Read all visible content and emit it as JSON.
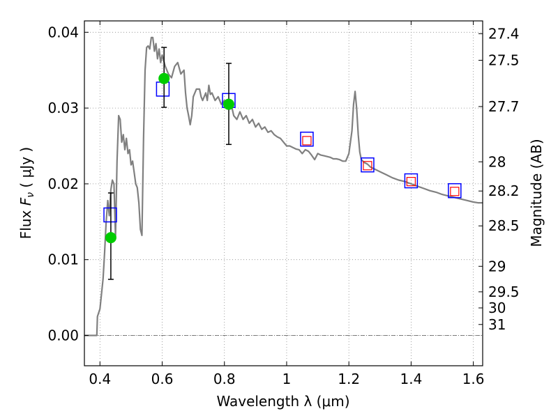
{
  "chart_data": {
    "type": "line",
    "xlabel": "Wavelength  λ (μm)",
    "ylabel": "Flux  F_ν  ( μJy )",
    "ylabel_right": "Magnitude (AB)",
    "xlim": [
      0.35,
      1.63
    ],
    "ylim": [
      -0.004,
      0.0415
    ],
    "grid": true,
    "x_ticks": [
      {
        "value": 0.4,
        "label": "0.4"
      },
      {
        "value": 0.6,
        "label": "0.6"
      },
      {
        "value": 0.8,
        "label": "0.8"
      },
      {
        "value": 1.0,
        "label": "1"
      },
      {
        "value": 1.2,
        "label": "1.2"
      },
      {
        "value": 1.4,
        "label": "1.4"
      },
      {
        "value": 1.6,
        "label": "1.6"
      }
    ],
    "y_ticks": [
      {
        "value": 0.0,
        "label": "0.00"
      },
      {
        "value": 0.01,
        "label": "0.01"
      },
      {
        "value": 0.02,
        "label": "0.02"
      },
      {
        "value": 0.03,
        "label": "0.03"
      },
      {
        "value": 0.04,
        "label": "0.04"
      }
    ],
    "right_ticks": [
      {
        "value": 27.4,
        "label": "27.4"
      },
      {
        "value": 27.5,
        "label": "27.5"
      },
      {
        "value": 27.7,
        "label": "27.7"
      },
      {
        "value": 28.0,
        "label": "28"
      },
      {
        "value": 28.2,
        "label": "28.2"
      },
      {
        "value": 28.5,
        "label": "28.5"
      },
      {
        "value": 29.0,
        "label": "29"
      },
      {
        "value": 29.5,
        "label": "29.5"
      },
      {
        "value": 30.0,
        "label": "30"
      },
      {
        "value": 31.0,
        "label": "31"
      }
    ],
    "series": [
      {
        "kind": "sed-model-line",
        "color": "#808080",
        "points": [
          [
            0.35,
            0.0
          ],
          [
            0.39,
            0.0
          ],
          [
            0.392,
            0.0025
          ],
          [
            0.4,
            0.0035
          ],
          [
            0.41,
            0.0075
          ],
          [
            0.415,
            0.011
          ],
          [
            0.42,
            0.015
          ],
          [
            0.425,
            0.0178
          ],
          [
            0.43,
            0.0158
          ],
          [
            0.435,
            0.0192
          ],
          [
            0.44,
            0.0205
          ],
          [
            0.445,
            0.02
          ],
          [
            0.45,
            0.013
          ],
          [
            0.455,
            0.023
          ],
          [
            0.46,
            0.029
          ],
          [
            0.465,
            0.0285
          ],
          [
            0.47,
            0.0255
          ],
          [
            0.475,
            0.0265
          ],
          [
            0.48,
            0.0245
          ],
          [
            0.485,
            0.026
          ],
          [
            0.49,
            0.024
          ],
          [
            0.495,
            0.0245
          ],
          [
            0.5,
            0.0225
          ],
          [
            0.505,
            0.023
          ],
          [
            0.51,
            0.0215
          ],
          [
            0.515,
            0.02
          ],
          [
            0.52,
            0.0195
          ],
          [
            0.525,
            0.0175
          ],
          [
            0.53,
            0.014
          ],
          [
            0.535,
            0.0132
          ],
          [
            0.54,
            0.026
          ],
          [
            0.545,
            0.035
          ],
          [
            0.55,
            0.038
          ],
          [
            0.555,
            0.0382
          ],
          [
            0.56,
            0.0378
          ],
          [
            0.565,
            0.0393
          ],
          [
            0.57,
            0.0393
          ],
          [
            0.575,
            0.0375
          ],
          [
            0.58,
            0.0385
          ],
          [
            0.585,
            0.0365
          ],
          [
            0.59,
            0.0378
          ],
          [
            0.595,
            0.036
          ],
          [
            0.6,
            0.037
          ],
          [
            0.61,
            0.0355
          ],
          [
            0.62,
            0.0345
          ],
          [
            0.63,
            0.034
          ],
          [
            0.64,
            0.0355
          ],
          [
            0.65,
            0.036
          ],
          [
            0.66,
            0.0345
          ],
          [
            0.67,
            0.035
          ],
          [
            0.675,
            0.032
          ],
          [
            0.68,
            0.03
          ],
          [
            0.685,
            0.029
          ],
          [
            0.69,
            0.0278
          ],
          [
            0.695,
            0.029
          ],
          [
            0.7,
            0.0315
          ],
          [
            0.71,
            0.0325
          ],
          [
            0.72,
            0.0325
          ],
          [
            0.725,
            0.0315
          ],
          [
            0.73,
            0.031
          ],
          [
            0.74,
            0.032
          ],
          [
            0.745,
            0.031
          ],
          [
            0.75,
            0.033
          ],
          [
            0.755,
            0.0318
          ],
          [
            0.76,
            0.032
          ],
          [
            0.77,
            0.031
          ],
          [
            0.78,
            0.0315
          ],
          [
            0.79,
            0.0305
          ],
          [
            0.8,
            0.031
          ],
          [
            0.81,
            0.0305
          ],
          [
            0.82,
            0.0308
          ],
          [
            0.83,
            0.029
          ],
          [
            0.84,
            0.0285
          ],
          [
            0.85,
            0.0295
          ],
          [
            0.86,
            0.0285
          ],
          [
            0.87,
            0.029
          ],
          [
            0.88,
            0.028
          ],
          [
            0.89,
            0.0285
          ],
          [
            0.9,
            0.0275
          ],
          [
            0.91,
            0.028
          ],
          [
            0.92,
            0.0272
          ],
          [
            0.93,
            0.0275
          ],
          [
            0.94,
            0.0268
          ],
          [
            0.95,
            0.027
          ],
          [
            0.96,
            0.0265
          ],
          [
            0.97,
            0.0262
          ],
          [
            0.98,
            0.026
          ],
          [
            0.99,
            0.0255
          ],
          [
            1.0,
            0.025
          ],
          [
            1.01,
            0.025
          ],
          [
            1.02,
            0.0248
          ],
          [
            1.03,
            0.0246
          ],
          [
            1.04,
            0.0245
          ],
          [
            1.05,
            0.024
          ],
          [
            1.06,
            0.0245
          ],
          [
            1.07,
            0.0243
          ],
          [
            1.08,
            0.0238
          ],
          [
            1.09,
            0.0232
          ],
          [
            1.1,
            0.024
          ],
          [
            1.11,
            0.0238
          ],
          [
            1.12,
            0.0237
          ],
          [
            1.13,
            0.0236
          ],
          [
            1.14,
            0.0235
          ],
          [
            1.15,
            0.0233
          ],
          [
            1.16,
            0.0233
          ],
          [
            1.17,
            0.0232
          ],
          [
            1.18,
            0.023
          ],
          [
            1.19,
            0.023
          ],
          [
            1.2,
            0.024
          ],
          [
            1.21,
            0.027
          ],
          [
            1.215,
            0.0305
          ],
          [
            1.22,
            0.0322
          ],
          [
            1.225,
            0.03
          ],
          [
            1.23,
            0.0265
          ],
          [
            1.235,
            0.0242
          ],
          [
            1.24,
            0.0232
          ],
          [
            1.25,
            0.0228
          ],
          [
            1.26,
            0.0226
          ],
          [
            1.27,
            0.0222
          ],
          [
            1.28,
            0.022
          ],
          [
            1.3,
            0.0216
          ],
          [
            1.32,
            0.0212
          ],
          [
            1.34,
            0.0208
          ],
          [
            1.36,
            0.0205
          ],
          [
            1.38,
            0.0203
          ],
          [
            1.4,
            0.02
          ],
          [
            1.42,
            0.0197
          ],
          [
            1.44,
            0.0194
          ],
          [
            1.46,
            0.0191
          ],
          [
            1.48,
            0.0189
          ],
          [
            1.5,
            0.0186
          ],
          [
            1.52,
            0.0184
          ],
          [
            1.54,
            0.0182
          ],
          [
            1.56,
            0.018
          ],
          [
            1.58,
            0.0178
          ],
          [
            1.6,
            0.0176
          ],
          [
            1.615,
            0.0175
          ],
          [
            1.63,
            0.0175
          ]
        ]
      },
      {
        "kind": "model-flux-blue-squares",
        "color": "#0000ff",
        "points": [
          [
            0.433,
            0.0159
          ],
          [
            0.602,
            0.0325
          ],
          [
            0.814,
            0.031
          ],
          [
            1.065,
            0.0259
          ],
          [
            1.26,
            0.0225
          ],
          [
            1.4,
            0.0204
          ],
          [
            1.54,
            0.0191
          ]
        ]
      },
      {
        "kind": "ir-red-squares",
        "color": "#ff0000",
        "points": [
          [
            1.065,
            0.0257
          ],
          [
            1.26,
            0.0224
          ],
          [
            1.4,
            0.0203
          ],
          [
            1.54,
            0.019
          ]
        ]
      },
      {
        "kind": "observed-green-points",
        "color": "#00cc00",
        "points": [
          {
            "x": 0.435,
            "y": 0.0129,
            "err_lo": 0.0074,
            "err_hi": 0.0188
          },
          {
            "x": 0.606,
            "y": 0.0339,
            "err_lo": 0.0301,
            "err_hi": 0.038
          },
          {
            "x": 0.814,
            "y": 0.0305,
            "err_lo": 0.0252,
            "err_hi": 0.0359
          }
        ]
      }
    ]
  },
  "colors": {
    "model_line": "#808080",
    "blue_square": "#0000ff",
    "red_square": "#ff0000",
    "observed_point": "#00cc00",
    "error_bar": "#000000",
    "grid": "#888888"
  }
}
